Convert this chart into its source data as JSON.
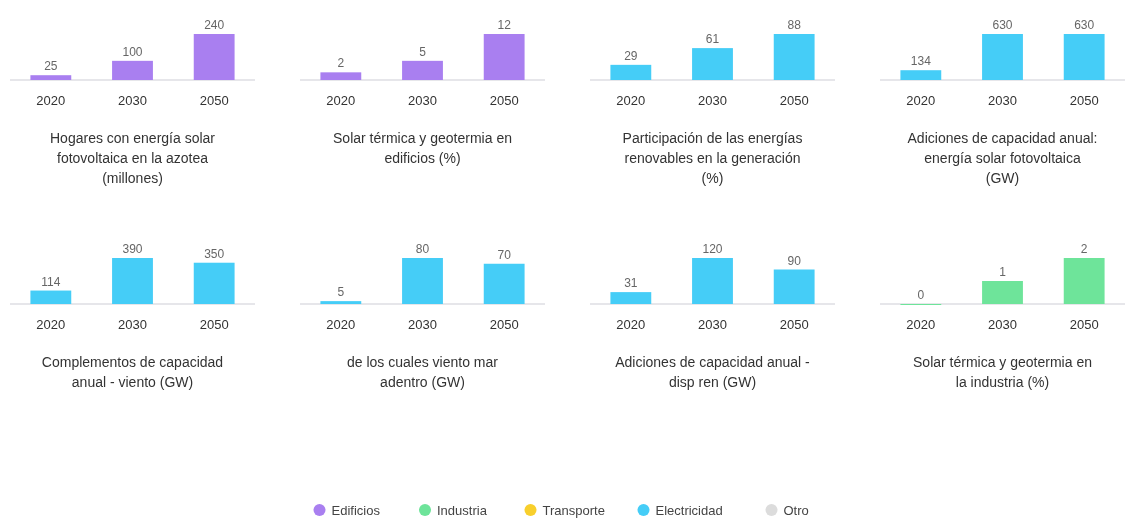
{
  "chart_data": [
    {
      "type": "bar",
      "title": "Hogares con energía solar fotovoltaica en la azotea (millones)",
      "categories": [
        "2020",
        "2030",
        "2050"
      ],
      "series": [
        {
          "color": "#a97ff0",
          "values": [
            25,
            100,
            240
          ]
        }
      ],
      "data_labels": true
    },
    {
      "type": "bar",
      "title": "Solar térmica y geotermia en edificios (%)",
      "categories": [
        "2020",
        "2030",
        "2050"
      ],
      "series": [
        {
          "color": "#a97ff0",
          "values": [
            2,
            5,
            12
          ]
        }
      ],
      "data_labels": true
    },
    {
      "type": "bar",
      "title": "Participación de las energías renovables en la generación (%)",
      "categories": [
        "2020",
        "2030",
        "2050"
      ],
      "series": [
        {
          "color": "#45cdf7",
          "values": [
            29,
            61,
            88
          ]
        }
      ],
      "data_labels": true
    },
    {
      "type": "bar",
      "title": "Adiciones de capacidad anual: energía solar fotovoltaica (GW)",
      "categories": [
        "2020",
        "2030",
        "2050"
      ],
      "series": [
        {
          "color": "#45cdf7",
          "values": [
            134,
            630,
            630
          ]
        }
      ],
      "data_labels": true
    },
    {
      "type": "bar",
      "title": "Complementos de capacidad anual - viento (GW)",
      "categories": [
        "2020",
        "2030",
        "2050"
      ],
      "series": [
        {
          "color": "#45cdf7",
          "values": [
            114,
            390,
            350
          ]
        }
      ],
      "data_labels": true
    },
    {
      "type": "bar",
      "title": "de los cuales viento mar adentro (GW)",
      "categories": [
        "2020",
        "2030",
        "2050"
      ],
      "series": [
        {
          "color": "#45cdf7",
          "values": [
            5,
            80,
            70
          ]
        }
      ],
      "data_labels": true
    },
    {
      "type": "bar",
      "title": "Adiciones de capacidad anual - disp ren (GW)",
      "categories": [
        "2020",
        "2030",
        "2050"
      ],
      "series": [
        {
          "color": "#45cdf7",
          "values": [
            31,
            120,
            90
          ]
        }
      ],
      "data_labels": true
    },
    {
      "type": "bar",
      "title": "Solar térmica y geotermia en la industria (%)",
      "categories": [
        "2020",
        "2030",
        "2050"
      ],
      "series": [
        {
          "color": "#6ee49a",
          "values": [
            0,
            1,
            2
          ]
        }
      ],
      "data_labels": true
    },
    {
      "type": "other",
      "legend": "bottom",
      "series": [
        {
          "name": "Edificios",
          "color": "#a97ff0"
        },
        {
          "name": "Industria",
          "color": "#6ee49a"
        },
        {
          "name": "Transporte",
          "color": "#f8cf2c"
        },
        {
          "name": "Electricidad",
          "color": "#45cdf7"
        },
        {
          "name": "Otro",
          "color": "#dcdcdc"
        }
      ]
    }
  ]
}
